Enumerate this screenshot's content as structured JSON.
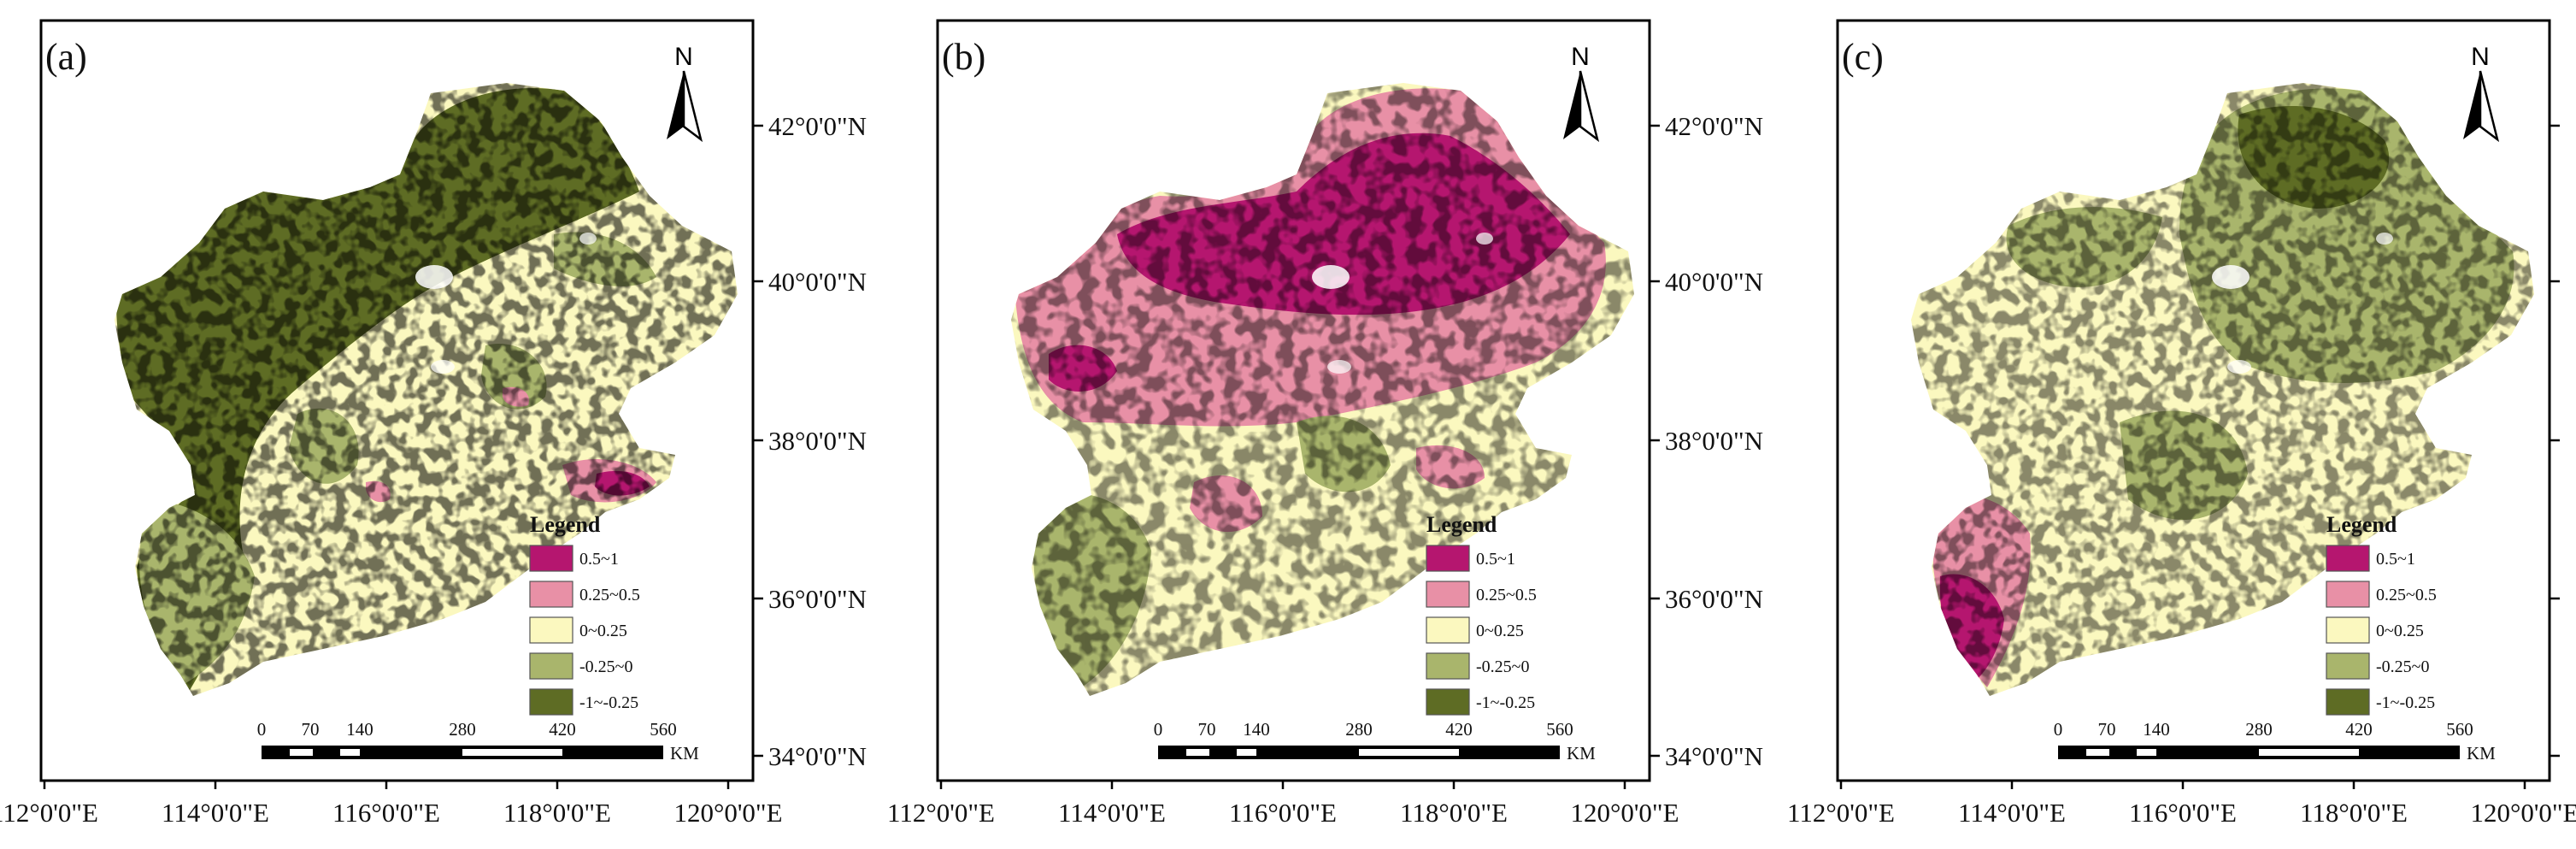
{
  "panels": [
    {
      "id": "a",
      "label": "(a)",
      "scheme": "a"
    },
    {
      "id": "b",
      "label": "(b)",
      "scheme": "b"
    },
    {
      "id": "c",
      "label": "(c)",
      "scheme": "c"
    }
  ],
  "north_label": "N",
  "longitude_ticks": [
    "112°0'0\"E",
    "114°0'0\"E",
    "116°0'0\"E",
    "118°0'0\"E",
    "120°0'0\"E"
  ],
  "latitude_ticks": [
    "42°0'0\"N",
    "40°0'0\"N",
    "38°0'0\"N",
    "36°0'0\"N",
    "34°0'0\"N"
  ],
  "legend": {
    "title": "Legend",
    "items": [
      {
        "label": "0.5~1",
        "color": "#b5166f"
      },
      {
        "label": "0.25~0.5",
        "color": "#e890a6"
      },
      {
        "label": "0~0.25",
        "color": "#fbf8bf"
      },
      {
        "label": "-0.25~0",
        "color": "#a9b56c"
      },
      {
        "label": "-1~-0.25",
        "color": "#5e6c24"
      }
    ]
  },
  "scale_bar": {
    "ticks": [
      "0",
      "70",
      "140",
      "280",
      "420",
      "560"
    ],
    "unit": "KM"
  }
}
